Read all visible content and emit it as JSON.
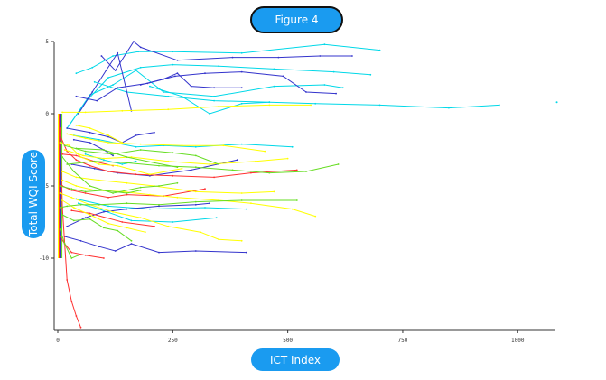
{
  "title": "Figure 4",
  "chart_data": {
    "type": "line",
    "title": "Figure 4",
    "xlabel": "ICT Index",
    "ylabel": "Total WQI Score",
    "xlim": [
      0,
      1080
    ],
    "ylim": [
      -15,
      5
    ],
    "xticks": [
      "0",
      "250",
      "500",
      "750",
      "1000"
    ],
    "yticks": [
      "5",
      "0",
      "-5",
      "-10"
    ],
    "grid": false,
    "series": [
      {
        "color": "#00d8e8",
        "x": [
          40,
          75,
          120,
          175,
          250,
          400,
          580,
          700
        ],
        "y": [
          2.8,
          3.2,
          4.0,
          4.3,
          4.3,
          4.2,
          4.8,
          4.4
        ]
      },
      {
        "color": "#00d8e8",
        "x": [
          20,
          60,
          110,
          180,
          250,
          350,
          470,
          600,
          680
        ],
        "y": [
          -1.0,
          0.8,
          2.5,
          3.2,
          3.4,
          3.3,
          3.1,
          2.9,
          2.7
        ]
      },
      {
        "color": "#00d8e8",
        "x": [
          25,
          70,
          120,
          170,
          230,
          340,
          470,
          580,
          620
        ],
        "y": [
          -0.8,
          1.3,
          2.0,
          3.0,
          1.5,
          1.2,
          1.9,
          2.0,
          1.8
        ]
      },
      {
        "color": "#00d8e8",
        "x": [
          80,
          150,
          240,
          340,
          460,
          560,
          700,
          850,
          960
        ],
        "y": [
          2.2,
          1.5,
          1.2,
          0.9,
          0.8,
          0.7,
          0.6,
          0.4,
          0.6
        ]
      },
      {
        "color": "#00d8e8",
        "x": [
          200,
          270,
          330,
          400,
          460
        ],
        "y": [
          1.9,
          1.2,
          0.0,
          0.7,
          0.8
        ]
      },
      {
        "color": "#00d8e8",
        "x": [
          35,
          90,
          170,
          230,
          300,
          400,
          510
        ],
        "y": [
          -1.5,
          -1.8,
          -2.3,
          -2.2,
          -2.3,
          -2.1,
          -2.3
        ]
      },
      {
        "color": "#00d8e8",
        "x": [
          40,
          110,
          200,
          320,
          410
        ],
        "y": [
          -5.9,
          -6.4,
          -6.6,
          -6.5,
          -6.6
        ]
      },
      {
        "color": "#00d8e8",
        "x": [
          45,
          90,
          160,
          250,
          345
        ],
        "y": [
          -6.2,
          -6.6,
          -7.4,
          -7.5,
          -7.2
        ]
      },
      {
        "color": "#00d8e8",
        "x": [
          60,
          100,
          140,
          170
        ],
        "y": [
          -2.8,
          -3.2,
          -3.5,
          -3.3
        ]
      },
      {
        "color": "#3333cc",
        "x": [
          95,
          125,
          165,
          180,
          260,
          380,
          480,
          570,
          640
        ],
        "y": [
          4.0,
          3.0,
          5.0,
          4.6,
          3.7,
          3.9,
          3.9,
          4.0,
          4.0
        ]
      },
      {
        "color": "#3333cc",
        "x": [
          40,
          85,
          130,
          195,
          255,
          320,
          400,
          490,
          540,
          605
        ],
        "y": [
          1.2,
          0.9,
          1.8,
          2.1,
          2.6,
          2.8,
          2.9,
          2.6,
          1.5,
          1.4
        ]
      },
      {
        "color": "#3333cc",
        "x": [
          45,
          75,
          105,
          130,
          160
        ],
        "y": [
          0.0,
          1.5,
          3.0,
          4.2,
          0.2
        ]
      },
      {
        "color": "#3333cc",
        "x": [
          180,
          230,
          260,
          290,
          340,
          400
        ],
        "y": [
          2.0,
          2.4,
          2.8,
          1.9,
          1.8,
          1.8
        ]
      },
      {
        "color": "#3333cc",
        "x": [
          20,
          70,
          110,
          140,
          170,
          210
        ],
        "y": [
          -1.0,
          -1.3,
          -1.6,
          -2.0,
          -1.5,
          -1.3
        ]
      },
      {
        "color": "#3333cc",
        "x": [
          30,
          80,
          130,
          200,
          290,
          390
        ],
        "y": [
          -3.5,
          -3.8,
          -4.1,
          -4.3,
          -3.9,
          -3.2
        ]
      },
      {
        "color": "#3333cc",
        "x": [
          20,
          60,
          100,
          150,
          220,
          300,
          330
        ],
        "y": [
          -7.8,
          -7.2,
          -6.8,
          -6.6,
          -6.4,
          -6.3,
          -6.2
        ]
      },
      {
        "color": "#3333cc",
        "x": [
          15,
          50,
          90,
          125,
          160,
          220,
          300,
          410
        ],
        "y": [
          -8.5,
          -8.8,
          -9.2,
          -9.5,
          -9.0,
          -9.6,
          -9.5,
          -9.6
        ]
      },
      {
        "color": "#3333cc",
        "x": [
          35,
          70,
          100,
          120
        ],
        "y": [
          -1.8,
          -2.0,
          -2.5,
          -2.9
        ]
      },
      {
        "color": "#ff3030",
        "x": [
          5,
          20,
          40,
          70,
          110,
          170,
          250,
          340,
          420,
          520
        ],
        "y": [
          -1.5,
          -2.6,
          -3.2,
          -3.6,
          -4.0,
          -4.2,
          -4.3,
          -4.4,
          -4.1,
          -3.9
        ]
      },
      {
        "color": "#ff3030",
        "x": [
          10,
          30,
          60,
          110,
          150,
          230,
          320
        ],
        "y": [
          -5.0,
          -5.3,
          -5.5,
          -5.8,
          -5.6,
          -5.7,
          -5.2
        ]
      },
      {
        "color": "#ff3030",
        "x": [
          5,
          10,
          20,
          30,
          40,
          50
        ],
        "y": [
          -1.0,
          -6.5,
          -11.5,
          -13.0,
          -14.0,
          -14.8
        ]
      },
      {
        "color": "#ff3030",
        "x": [
          5,
          15,
          30,
          60,
          100
        ],
        "y": [
          -8.5,
          -9.0,
          -9.6,
          -9.8,
          -10.0
        ]
      },
      {
        "color": "#ff3030",
        "x": [
          10,
          40,
          80,
          120
        ],
        "y": [
          -2.8,
          -2.9,
          -3.3,
          -3.6
        ]
      },
      {
        "color": "#ff3030",
        "x": [
          30,
          70,
          140,
          210
        ],
        "y": [
          -6.7,
          -6.9,
          -7.5,
          -7.8
        ]
      },
      {
        "color": "#ffff00",
        "x": [
          10,
          60,
          140,
          240,
          350,
          460,
          550
        ],
        "y": [
          0.1,
          0.1,
          0.2,
          0.3,
          0.5,
          0.6,
          0.6
        ]
      },
      {
        "color": "#ffff00",
        "x": [
          20,
          60,
          110,
          180,
          270,
          360,
          450
        ],
        "y": [
          -1.4,
          -1.7,
          -2.0,
          -2.1,
          -2.2,
          -2.2,
          -2.6
        ]
      },
      {
        "color": "#ffff00",
        "x": [
          15,
          55,
          100,
          160,
          240,
          330,
          430,
          500
        ],
        "y": [
          -2.5,
          -2.9,
          -3.1,
          -3.0,
          -3.3,
          -3.5,
          -3.3,
          -3.1
        ]
      },
      {
        "color": "#ffff00",
        "x": [
          10,
          40,
          90,
          150,
          210,
          300,
          400,
          470
        ],
        "y": [
          -4.0,
          -4.4,
          -4.6,
          -4.8,
          -5.0,
          -5.4,
          -5.5,
          -5.4
        ]
      },
      {
        "color": "#ffff00",
        "x": [
          10,
          40,
          80,
          140,
          200,
          260,
          350,
          420,
          510,
          560
        ],
        "y": [
          -4.6,
          -5.0,
          -5.3,
          -5.4,
          -5.6,
          -5.8,
          -6.0,
          -6.2,
          -6.6,
          -7.1
        ]
      },
      {
        "color": "#ffff00",
        "x": [
          5,
          30,
          70,
          120,
          180,
          240,
          310,
          350,
          400
        ],
        "y": [
          -5.5,
          -5.8,
          -6.3,
          -6.8,
          -7.2,
          -7.8,
          -8.2,
          -8.7,
          -8.8
        ]
      },
      {
        "color": "#ffff00",
        "x": [
          10,
          35,
          70,
          110,
          150,
          190
        ],
        "y": [
          -6.0,
          -6.5,
          -7.0,
          -7.6,
          -7.9,
          -8.2
        ]
      },
      {
        "color": "#ffff00",
        "x": [
          5,
          25,
          50,
          90,
          130,
          200,
          270
        ],
        "y": [
          -2.0,
          -2.2,
          -3.0,
          -3.5,
          -3.6,
          -4.2,
          -3.8
        ]
      },
      {
        "color": "#ffff00",
        "x": [
          40,
          70,
          110,
          140
        ],
        "y": [
          -0.8,
          -1.0,
          -1.5,
          -2.0
        ]
      },
      {
        "color": "#66dd22",
        "x": [
          15,
          60,
          120,
          180,
          250,
          300,
          350
        ],
        "y": [
          -2.2,
          -2.6,
          -2.8,
          -2.5,
          -2.7,
          -2.9,
          -3.5
        ]
      },
      {
        "color": "#66dd22",
        "x": [
          20,
          80,
          150,
          220,
          300,
          380,
          460,
          540,
          610
        ],
        "y": [
          -3.5,
          -3.3,
          -3.4,
          -3.6,
          -3.7,
          -3.9,
          -4.1,
          -4.0,
          -3.5
        ]
      },
      {
        "color": "#66dd22",
        "x": [
          10,
          35,
          70,
          120,
          180,
          220,
          260
        ],
        "y": [
          -3.0,
          -4.0,
          -5.0,
          -5.5,
          -5.1,
          -5.0,
          -4.8
        ]
      },
      {
        "color": "#66dd22",
        "x": [
          5,
          20,
          50,
          90,
          150,
          220,
          300,
          400,
          520
        ],
        "y": [
          -6.5,
          -6.4,
          -6.3,
          -6.3,
          -6.2,
          -6.3,
          -6.1,
          -6.0,
          -6.0
        ]
      },
      {
        "color": "#66dd22",
        "x": [
          10,
          35,
          70,
          100,
          130,
          160
        ],
        "y": [
          -7.0,
          -7.4,
          -7.3,
          -7.9,
          -8.1,
          -8.8
        ]
      },
      {
        "color": "#66dd22",
        "x": [
          5,
          15,
          30,
          45
        ],
        "y": [
          -8.0,
          -9.0,
          -10.0,
          -9.8
        ]
      },
      {
        "color": "#66dd22",
        "x": [
          5,
          30,
          60,
          100,
          150,
          180
        ],
        "y": [
          -5.0,
          -5.2,
          -5.4,
          -5.3,
          -5.5,
          -5.3
        ]
      },
      {
        "color": "#66dd22",
        "x": [
          40,
          100,
          150,
          210,
          260
        ],
        "y": [
          -2.4,
          -2.5,
          -3.0,
          -3.4,
          -3.7
        ]
      }
    ],
    "points": [
      {
        "x": 1085,
        "y": 0.8,
        "color": "#00d8e8"
      }
    ],
    "cluster_colors": [
      "#ffff00",
      "#ff3030",
      "#3333cc",
      "#66dd22"
    ]
  }
}
